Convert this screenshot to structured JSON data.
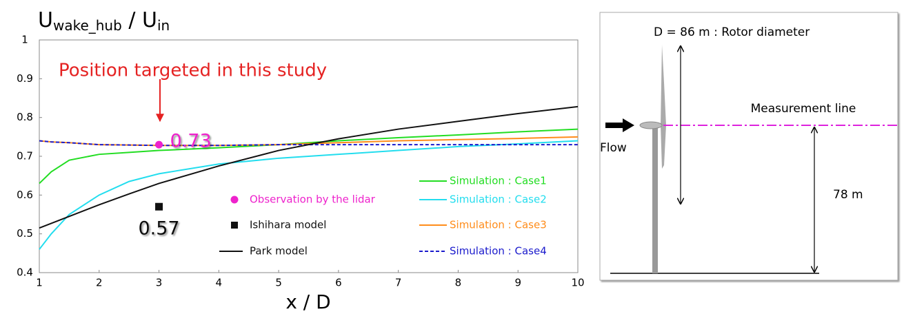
{
  "chart_data": {
    "type": "line",
    "ylabel": {
      "main": "U",
      "sub": "wake_hub",
      "sep": " / U",
      "sub2": "in"
    },
    "xlabel": "x / D",
    "annotation": "Position targeted in this study",
    "x": [
      1,
      1.2,
      1.5,
      2,
      2.5,
      3,
      4,
      5,
      6,
      7,
      8,
      9,
      10
    ],
    "series": [
      {
        "name": "Simulation : Case1",
        "color": "#22dd22",
        "values": [
          0.63,
          0.66,
          0.69,
          0.705,
          0.71,
          0.715,
          0.722,
          0.73,
          0.74,
          0.748,
          0.755,
          0.763,
          0.77
        ]
      },
      {
        "name": "Simulation : Case2",
        "color": "#22ddee",
        "values": [
          0.46,
          0.5,
          0.55,
          0.6,
          0.635,
          0.655,
          0.68,
          0.695,
          0.705,
          0.715,
          0.725,
          0.732,
          0.74
        ]
      },
      {
        "name": "Simulation : Case3",
        "color": "#ff8c1a",
        "values": [
          0.74,
          0.737,
          0.735,
          0.73,
          0.729,
          0.728,
          0.728,
          0.73,
          0.735,
          0.74,
          0.743,
          0.746,
          0.75
        ]
      },
      {
        "name": "Simulation : Case4",
        "color": "#1a1acc",
        "dashed": true,
        "values": [
          0.74,
          0.737,
          0.735,
          0.73,
          0.729,
          0.728,
          0.728,
          0.73,
          0.73,
          0.73,
          0.73,
          0.73,
          0.73
        ]
      },
      {
        "name": "Park model",
        "color": "#111111",
        "values": [
          0.515,
          0.527,
          0.545,
          0.575,
          0.603,
          0.63,
          0.675,
          0.715,
          0.745,
          0.77,
          0.79,
          0.81,
          0.828
        ]
      }
    ],
    "points": [
      {
        "name": "Observation by the lidar",
        "color": "#ee22cc",
        "marker": "circle",
        "x": 3,
        "y": 0.73
      },
      {
        "name": "Ishihara model",
        "color": "#111111",
        "marker": "square",
        "x": 3,
        "y": 0.57
      }
    ],
    "xlim": [
      1,
      10
    ],
    "xticks": [
      1,
      2,
      3,
      4,
      5,
      6,
      7,
      8,
      9,
      10
    ],
    "ylim": [
      0.4,
      1
    ],
    "yticks": [
      0.4,
      0.5,
      0.6,
      0.7,
      0.8,
      0.9,
      1
    ]
  },
  "diagram": {
    "rotor": "D = 86 m : Rotor diameter",
    "measurement": "Measurement line",
    "flow": "Flow",
    "height": "78 m"
  }
}
